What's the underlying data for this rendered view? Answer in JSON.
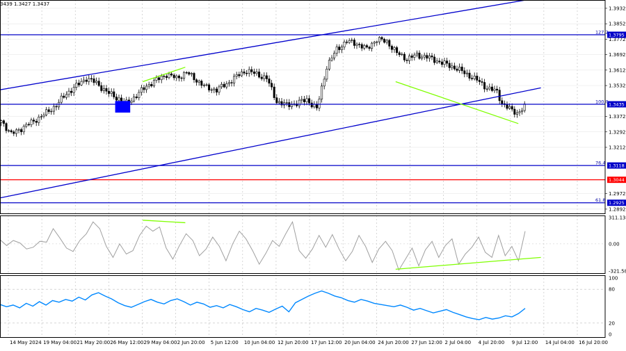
{
  "ohlc_header": "3439 1.3427 1.3437",
  "chart_data": [
    {
      "type": "candlestick",
      "title": "",
      "xlabel": "",
      "ylabel": "",
      "ylim": [
        1.287,
        1.3975
      ],
      "grid": true,
      "x_labels": [
        "14 May 2024",
        "19 May 04:00",
        "21 May 20:00",
        "26 May 12:00",
        "29 May 04:00",
        "2 Jun 20:00",
        "5 Jun 12:00",
        "10 Jun 04:00",
        "12 Jun 20:00",
        "17 Jun 12:00",
        "20 Jun 04:00",
        "24 Jun 20:00",
        "27 Jun 12:00",
        "2 Jul 04:00",
        "4 Jul 20:00",
        "9 Jul 12:00",
        "14 Jul 04:00",
        "16 Jul 20:00"
      ],
      "y_ticks": [
        "1.3932",
        "1.3852",
        "1.3772",
        "1.3692",
        "1.3612",
        "1.3532",
        "1.3372",
        "1.3292",
        "1.3212",
        "1.2972",
        "1.2892"
      ],
      "close_path": [
        [
          0,
          1.335
        ],
        [
          4,
          1.328
        ],
        [
          8,
          1.331
        ],
        [
          12,
          1.334
        ],
        [
          18,
          1.339
        ],
        [
          22,
          1.343
        ],
        [
          26,
          1.349
        ],
        [
          30,
          1.353
        ],
        [
          34,
          1.357
        ],
        [
          38,
          1.3545
        ],
        [
          42,
          1.35
        ],
        [
          46,
          1.347
        ],
        [
          50,
          1.344
        ],
        [
          54,
          1.348
        ],
        [
          58,
          1.353
        ],
        [
          62,
          1.356
        ],
        [
          66,
          1.359
        ],
        [
          70,
          1.357
        ],
        [
          74,
          1.36
        ],
        [
          78,
          1.356
        ],
        [
          82,
          1.352
        ],
        [
          86,
          1.351
        ],
        [
          90,
          1.354
        ],
        [
          94,
          1.358
        ],
        [
          98,
          1.361
        ],
        [
          102,
          1.359
        ],
        [
          106,
          1.357
        ],
        [
          110,
          1.345
        ],
        [
          114,
          1.343
        ],
        [
          118,
          1.344
        ],
        [
          122,
          1.346
        ],
        [
          126,
          1.341
        ],
        [
          130,
          1.363
        ],
        [
          134,
          1.372
        ],
        [
          138,
          1.376
        ],
        [
          142,
          1.375
        ],
        [
          146,
          1.372
        ],
        [
          148,
          1.375
        ],
        [
          150,
          1.377
        ],
        [
          154,
          1.376
        ],
        [
          158,
          1.37
        ],
        [
          162,
          1.367
        ],
        [
          166,
          1.369
        ],
        [
          170,
          1.368
        ],
        [
          174,
          1.366
        ],
        [
          178,
          1.364
        ],
        [
          182,
          1.362
        ],
        [
          186,
          1.359
        ],
        [
          190,
          1.356
        ],
        [
          194,
          1.352
        ],
        [
          198,
          1.35
        ],
        [
          200,
          1.344
        ],
        [
          203,
          1.341
        ],
        [
          206,
          1.339
        ],
        [
          209,
          1.342
        ]
      ],
      "horizontal_levels": [
        {
          "value": 1.3795,
          "label": "1.3795",
          "fib_label": "127.2",
          "color": "#0000c8"
        },
        {
          "value": 1.3435,
          "label": "1.3435",
          "fib_label": "100.0",
          "color": "#0000c8"
        },
        {
          "value": 1.3118,
          "label": "1.3118",
          "fib_label": "76.4",
          "color": "#0000c8"
        },
        {
          "value": 1.3044,
          "label": "1.3044",
          "fib_label": "",
          "color": "#ff0000"
        },
        {
          "value": 1.2925,
          "label": "1.2925",
          "fib_label": "61.8",
          "color": "#0000c8"
        }
      ],
      "trend_lines": [
        {
          "name": "upper-channel",
          "from": [
            0,
            1.351
          ],
          "to": [
            210,
            1.3975
          ],
          "color": "#0000cc"
        },
        {
          "name": "lower-channel",
          "from": [
            0,
            1.295
          ],
          "to": [
            216,
            1.352
          ],
          "color": "#0000cc"
        },
        {
          "name": "divergence-up",
          "from": [
            57,
            1.3552
          ],
          "to": [
            74,
            1.3627
          ],
          "color": "#7fff00"
        },
        {
          "name": "divergence-down",
          "from": [
            158,
            1.3552
          ],
          "to": [
            207,
            1.3335
          ],
          "color": "#7fff00"
        }
      ],
      "highlight_zone": {
        "x0": 46,
        "x1": 52,
        "price_top": 1.3452,
        "price_bottom": 1.3392,
        "color": "#0000ff"
      }
    },
    {
      "type": "line",
      "title": "",
      "xlabel": "",
      "ylabel": "",
      "ylim": [
        -321.584,
        311.138
      ],
      "y_ticks": [
        "311.138",
        "0.00",
        "-321.584"
      ],
      "series": [
        {
          "color": "#a0a0a0",
          "values": [
            50,
            -20,
            40,
            10,
            -60,
            -40,
            30,
            20,
            180,
            70,
            -50,
            -90,
            40,
            120,
            260,
            180,
            -30,
            -160,
            0,
            -120,
            -80,
            100,
            210,
            150,
            200,
            -50,
            -180,
            -20,
            120,
            40,
            -140,
            -60,
            80,
            -30,
            -200,
            0,
            150,
            60,
            -80,
            -240,
            -110,
            40,
            -30,
            120,
            260,
            -80,
            -170,
            -60,
            100,
            -40,
            110,
            -60,
            -200,
            -90,
            100,
            -30,
            -220,
            -60,
            30,
            -80,
            -310,
            -180,
            -50,
            -260,
            -70,
            30,
            -160,
            -20,
            60,
            -240,
            -120,
            -40,
            80,
            -100,
            -160,
            100,
            -140,
            -30,
            -200,
            150
          ]
        }
      ],
      "zero_line": true,
      "trend_lines": [
        {
          "name": "osc-divergence-up",
          "from": [
            57,
            280
          ],
          "to": [
            74,
            250
          ],
          "color": "#7fff00"
        },
        {
          "name": "osc-divergence-low",
          "from": [
            158,
            -300
          ],
          "to": [
            216,
            -160
          ],
          "color": "#7fff00"
        }
      ]
    },
    {
      "type": "line",
      "title": "",
      "xlabel": "",
      "ylabel": "",
      "ylim": [
        0,
        100
      ],
      "y_ticks": [
        "100",
        "80",
        "20",
        "0"
      ],
      "reference_levels": [
        80,
        20
      ],
      "series": [
        {
          "color": "#0088ff",
          "values": [
            53,
            49,
            52,
            47,
            55,
            50,
            58,
            52,
            60,
            57,
            62,
            59,
            66,
            61,
            70,
            74,
            68,
            63,
            56,
            51,
            48,
            53,
            58,
            62,
            57,
            54,
            60,
            63,
            58,
            52,
            57,
            54,
            48,
            51,
            47,
            53,
            49,
            44,
            40,
            46,
            43,
            39,
            45,
            50,
            40,
            56,
            62,
            68,
            73,
            77,
            73,
            68,
            65,
            60,
            57,
            62,
            59,
            55,
            53,
            51,
            49,
            52,
            48,
            43,
            46,
            42,
            38,
            41,
            44,
            39,
            35,
            31,
            28,
            26,
            30,
            27,
            29,
            33,
            31,
            37,
            46
          ]
        }
      ]
    }
  ]
}
